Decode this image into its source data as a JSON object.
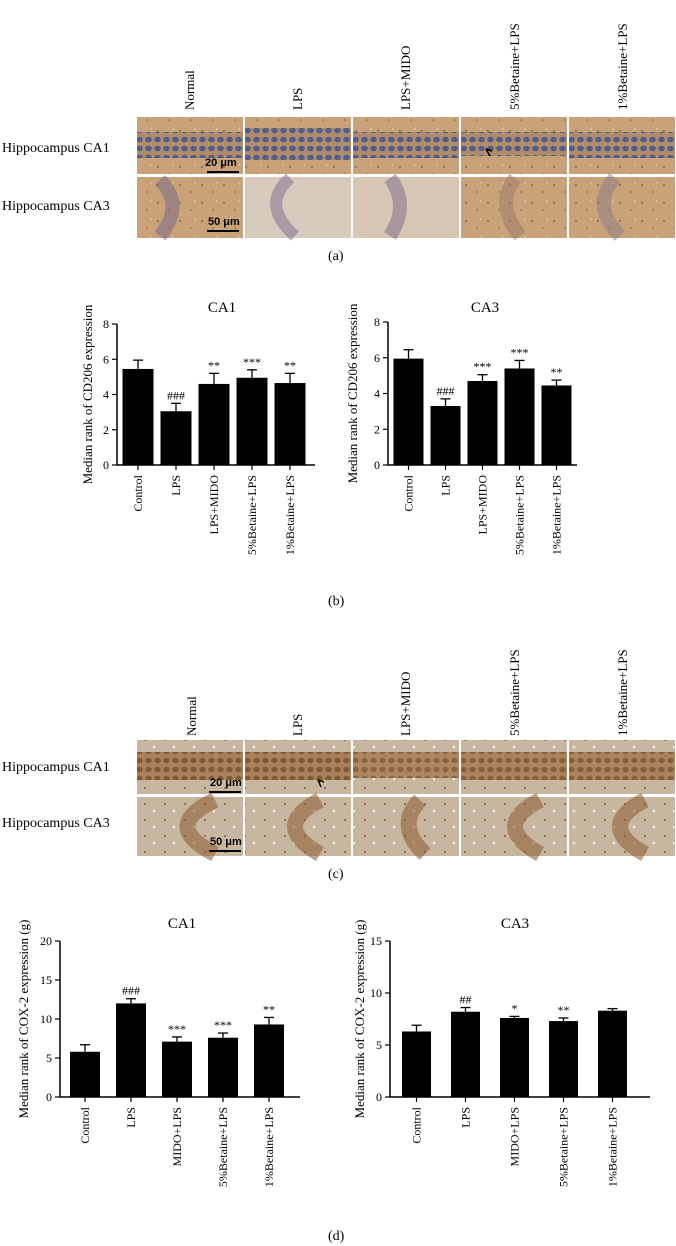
{
  "panels": {
    "a": "(a)",
    "b": "(b)",
    "c": "(c)",
    "d": "(d)"
  },
  "micro_a": {
    "conditions": [
      "Normal",
      "LPS",
      "LPS+MIDO",
      "5%Betaine+LPS",
      "1%Betaine+LPS"
    ],
    "rows": [
      "Hippocampus CA1",
      "Hippocampus CA3"
    ],
    "scalebars": [
      "20 μm",
      "50 μm"
    ]
  },
  "micro_c": {
    "conditions": [
      "Normal",
      "LPS",
      "LPS+MIDO",
      "5%Betaine+LPS",
      "1%Betaine+LPS"
    ],
    "rows": [
      "Hippocampus CA1",
      "Hippocampus CA3"
    ],
    "scalebars": [
      "20 μm",
      "50 μm"
    ]
  },
  "colors": {
    "bar": "#000000",
    "stain_ab_bg": "#c9a27a",
    "stain_ab_nuclei": "#4a5a8c",
    "stain_cd_bg": "#c8b7a0",
    "stain_cd_cells": "#8a5a2e"
  },
  "chart_data": [
    {
      "type": "bar",
      "panel": "b",
      "title": "CA1",
      "ylabel": "Median rank of CD206 expression",
      "ylim": [
        0,
        8
      ],
      "yticks": [
        0,
        2,
        4,
        6,
        8
      ],
      "categories": [
        "Control",
        "LPS",
        "LPS+MIDO",
        "5%Betaine+LPS",
        "1%Betaine+LPS"
      ],
      "values": [
        5.45,
        3.05,
        4.6,
        4.95,
        4.65
      ],
      "errors": [
        0.5,
        0.45,
        0.6,
        0.45,
        0.55
      ],
      "annotations": [
        "",
        "###",
        "**",
        "***",
        "**"
      ]
    },
    {
      "type": "bar",
      "panel": "b",
      "title": "CA3",
      "ylabel": "Median rank of CD206 expression",
      "ylim": [
        0,
        8
      ],
      "yticks": [
        0,
        2,
        4,
        6,
        8
      ],
      "categories": [
        "Control",
        "LPS",
        "LPS+MIDO",
        "5%Betaine+LPS",
        "1%Betaine+LPS"
      ],
      "values": [
        5.95,
        3.3,
        4.7,
        5.4,
        4.45
      ],
      "errors": [
        0.5,
        0.4,
        0.35,
        0.45,
        0.3
      ],
      "annotations": [
        "",
        "###",
        "***",
        "***",
        "**"
      ]
    },
    {
      "type": "bar",
      "panel": "d",
      "title": "CA1",
      "ylabel": "Median rank of COX-2 expression (g)",
      "ylim": [
        0,
        20
      ],
      "yticks": [
        0,
        5,
        10,
        15,
        20
      ],
      "categories": [
        "Control",
        "LPS",
        "MIDO+LPS",
        "5%Betaine+LPS",
        "1%Betaine+LPS"
      ],
      "values": [
        5.8,
        12.0,
        7.1,
        7.6,
        9.3
      ],
      "errors": [
        0.9,
        0.6,
        0.6,
        0.6,
        0.9
      ],
      "annotations": [
        "",
        "###",
        "***",
        "***",
        "**"
      ]
    },
    {
      "type": "bar",
      "panel": "d",
      "title": "CA3",
      "ylabel": "Median rank of COX-2 expression (g)",
      "ylim": [
        0,
        15
      ],
      "yticks": [
        0,
        5,
        10,
        15
      ],
      "categories": [
        "Control",
        "LPS",
        "MIDO+LPS",
        "5%Betaine+LPS",
        "1%Betaine+LPS"
      ],
      "values": [
        6.3,
        8.2,
        7.6,
        7.3,
        8.3
      ],
      "errors": [
        0.6,
        0.4,
        0.15,
        0.3,
        0.2
      ],
      "annotations": [
        "",
        "##",
        "*",
        "**",
        ""
      ]
    }
  ]
}
